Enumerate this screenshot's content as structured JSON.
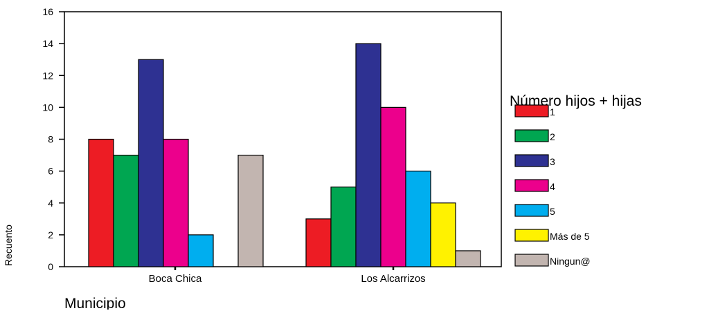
{
  "chart_data": {
    "type": "bar",
    "xlabel": "Municipio",
    "ylabel": "Recuento",
    "ylim": [
      0,
      16
    ],
    "yticks": [
      0,
      2,
      4,
      6,
      8,
      10,
      12,
      14,
      16
    ],
    "categories": [
      "Boca Chica",
      "Los Alcarrizos"
    ],
    "legend_title": "Número hijos + hijas",
    "legend_position": "right",
    "series": [
      {
        "name": "1",
        "color": "#ed1c24",
        "values": [
          8,
          3
        ]
      },
      {
        "name": "2",
        "color": "#00a651",
        "values": [
          7,
          5
        ]
      },
      {
        "name": "3",
        "color": "#2e3192",
        "values": [
          13,
          14
        ]
      },
      {
        "name": "4",
        "color": "#ec008c",
        "values": [
          8,
          10
        ]
      },
      {
        "name": "5",
        "color": "#00aeef",
        "values": [
          2,
          6
        ]
      },
      {
        "name": "Más de 5",
        "color": "#fff200",
        "values": [
          0,
          4
        ]
      },
      {
        "name": "Ningun@",
        "color": "#c2b5b0",
        "values": [
          7,
          1
        ]
      }
    ]
  }
}
